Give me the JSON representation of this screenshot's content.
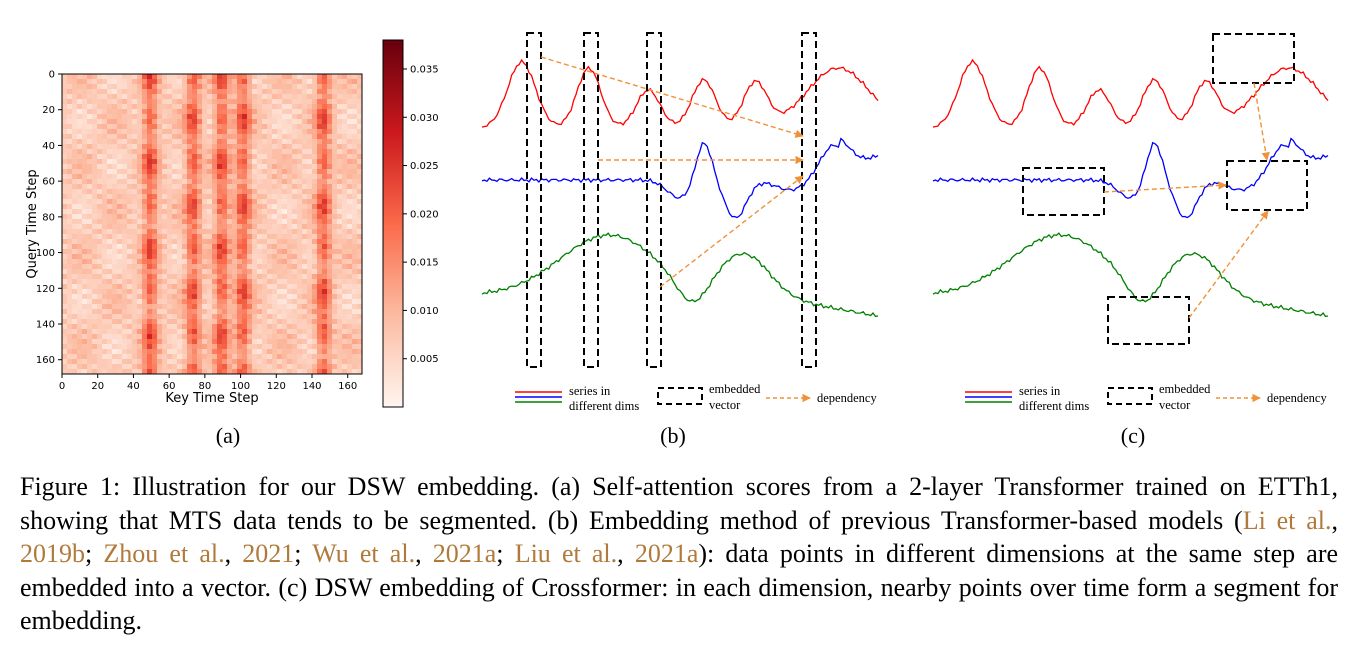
{
  "panel_a": {
    "xlabel": "Key Time Step",
    "ylabel": "Query Time Step",
    "xticks": [
      "0",
      "20",
      "40",
      "60",
      "80",
      "100",
      "120",
      "140",
      "160"
    ],
    "yticks": [
      "0",
      "20",
      "40",
      "60",
      "80",
      "100",
      "120",
      "140",
      "160"
    ],
    "colorbar_ticks": [
      "0.035",
      "0.030",
      "0.025",
      "0.020",
      "0.015",
      "0.010",
      "0.005"
    ],
    "label": "(a)"
  },
  "panel_b": {
    "legend": {
      "series_line1": "series in",
      "series_line2": "different dims",
      "embedded_line1": "embedded",
      "embedded_line2": "vector",
      "dependency": "dependency"
    },
    "label": "(b)"
  },
  "panel_c": {
    "legend": {
      "series_line1": "series in",
      "series_line2": "different dims",
      "embedded_line1": "embedded",
      "embedded_line2": "vector",
      "dependency": "dependency"
    },
    "label": "(c)"
  },
  "colors": {
    "red": "#ff0000",
    "blue": "#0000ff",
    "green": "#008000",
    "arrow": "#f0923a",
    "cite": "#b07a3a"
  },
  "caption": {
    "t1": "Figure 1: Illustration for our DSW embedding. (a) Self-attention scores from a 2-layer Transformer trained on ETTh1, showing that MTS data tends to be segmented. (b) Embedding method of previous Transformer-based models (",
    "c1": "Li et al.",
    "s1": ", ",
    "c2": "2019b",
    "s2": "; ",
    "c3": "Zhou et al.",
    "s3": ", ",
    "c4": "2021",
    "s4": "; ",
    "c5": "Wu et al.",
    "s5": ", ",
    "c6": "2021a",
    "s6": "; ",
    "c7": "Liu et al.",
    "s7": ", ",
    "c8": "2021a",
    "t2": "): data points in different dimensions at the same step are embedded into a vector. (c) DSW embedding of Crossformer: in each dimension, nearby points over time form a segment for embedding."
  }
}
